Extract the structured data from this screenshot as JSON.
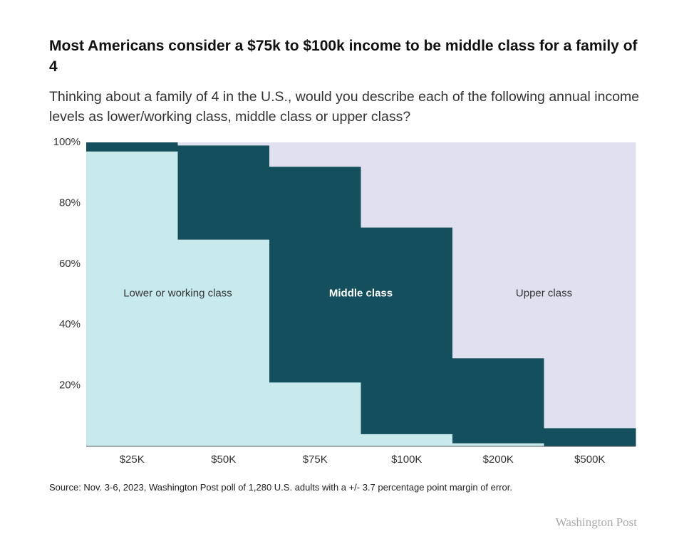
{
  "chart_data": {
    "type": "stacked_bar",
    "title": "Most Americans consider a $75k to $100k income to be middle class for a family of 4",
    "subtitle": "Thinking about a family of 4 in the U.S., would you describe each of the following annual income levels as lower/working class, middle class or upper class?",
    "categories": [
      "$25K",
      "$50K",
      "$75K",
      "$100K",
      "$200K",
      "$500K"
    ],
    "series": [
      {
        "name": "Lower or working class",
        "color": "#c8eaed",
        "values": [
          97,
          68,
          21,
          4,
          1,
          0
        ]
      },
      {
        "name": "Middle class",
        "color": "#134f5c",
        "values": [
          3,
          31,
          71,
          68,
          28,
          6
        ]
      },
      {
        "name": "Upper class",
        "color": "#e0e0ee",
        "values": [
          0,
          1,
          8,
          28,
          71,
          94
        ]
      }
    ],
    "ylim": [
      0,
      100
    ],
    "yticks": [
      {
        "value": 20,
        "label": "20%"
      },
      {
        "value": 40,
        "label": "40%"
      },
      {
        "value": 60,
        "label": "60%"
      },
      {
        "value": 80,
        "label": "80%"
      },
      {
        "value": 100,
        "label": "100%"
      }
    ],
    "source": "Source: Nov. 3-6, 2023, Washington Post poll of 1,280 U.S. adults with a +/- 3.7 percentage point margin of error.",
    "credit": "Washington Post"
  }
}
